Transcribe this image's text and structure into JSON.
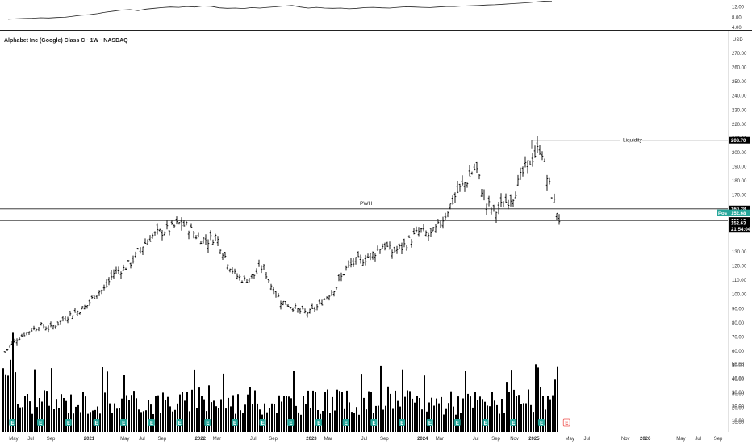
{
  "header": {
    "title": "Alphabet Inc (Google) Class C · 1W · NASDAQ",
    "currency": "USD"
  },
  "top_panel": {
    "ticks": [
      "12.00",
      "8.00",
      "4.00"
    ],
    "values": [
      7.2,
      7.4,
      7.5,
      7.6,
      7.8,
      7.7,
      7.9,
      8.0,
      8.4,
      8.8,
      9.0,
      9.4,
      10.0,
      10.4,
      10.8,
      11.0,
      10.6,
      11.2,
      11.5,
      11.8,
      12.0,
      11.9,
      12.2,
      12.0,
      12.4,
      12.3,
      11.7,
      11.5,
      11.6,
      11.4,
      11.8,
      11.6,
      11.9,
      12.1,
      12.4,
      12.6,
      12.0,
      11.6,
      11.9,
      11.6,
      11.5,
      11.6,
      11.3,
      11.5,
      11.8,
      11.9,
      11.7,
      11.6,
      11.9,
      12.1,
      12.0,
      11.9,
      11.8,
      12.0,
      12.2,
      12.2,
      12.4,
      12.5,
      12.6,
      12.8,
      12.9,
      13.1,
      13.3,
      13.5,
      13.7,
      14.0,
      14.3,
      14.2
    ]
  },
  "price_axis": {
    "ticks": [
      "270.00",
      "260.00",
      "250.00",
      "240.00",
      "230.00",
      "220.00",
      "210.00",
      "200.00",
      "190.00",
      "180.00",
      "170.00",
      "130.00",
      "120.00",
      "110.00",
      "100.00",
      "90.00",
      "80.00",
      "70.00",
      "60.00",
      "50.00",
      "40.00",
      "30.00",
      "20.00",
      "10.00"
    ]
  },
  "levels": [
    {
      "name": "Liquidity",
      "price": 208.7,
      "label": "208.70"
    },
    {
      "name": "PWH",
      "price": 160.28,
      "label": "160.28"
    },
    {
      "name": "",
      "price": 152.1,
      "label": "152.10"
    }
  ],
  "badges": {
    "pos_label": "Pos",
    "pos_value": "152.68",
    "last_price": "152.63",
    "countdown": "21:54:04"
  },
  "time_axis": {
    "ticks": [
      {
        "label": "May",
        "bold": false
      },
      {
        "label": "Jul",
        "bold": false
      },
      {
        "label": "Sep",
        "bold": false
      },
      {
        "label": "2021",
        "bold": true
      },
      {
        "label": "May",
        "bold": false
      },
      {
        "label": "Jul",
        "bold": false
      },
      {
        "label": "Sep",
        "bold": false
      },
      {
        "label": "2022",
        "bold": true
      },
      {
        "label": "Mar",
        "bold": false
      },
      {
        "label": "Jul",
        "bold": false
      },
      {
        "label": "Sep",
        "bold": false
      },
      {
        "label": "2023",
        "bold": true
      },
      {
        "label": "Mar",
        "bold": false
      },
      {
        "label": "Jul",
        "bold": false
      },
      {
        "label": "Sep",
        "bold": false
      },
      {
        "label": "2024",
        "bold": true
      },
      {
        "label": "Mar",
        "bold": false
      },
      {
        "label": "Jul",
        "bold": false
      },
      {
        "label": "Sep",
        "bold": false
      },
      {
        "label": "Nov",
        "bold": false
      },
      {
        "label": "2025",
        "bold": true
      },
      {
        "label": "May",
        "bold": false
      },
      {
        "label": "Jul",
        "bold": false
      },
      {
        "label": "Nov",
        "bold": false
      },
      {
        "label": "2026",
        "bold": true
      },
      {
        "label": "May",
        "bold": false
      },
      {
        "label": "Jul",
        "bold": false
      },
      {
        "label": "Sep",
        "bold": false
      }
    ]
  },
  "earnings_badge_text": "E",
  "colors": {
    "bars": "#000000",
    "earnings": "#26a69a",
    "earnings_outline": "#ef5350",
    "pos_badge": "#26a69a",
    "level_badge": "#000000"
  },
  "chart_data": {
    "type": "bar",
    "title": "Alphabet Inc (Google) Class C · 1W · NASDAQ",
    "xlabel": "",
    "ylabel": "",
    "ylim": [
      0,
      275
    ],
    "grid": false,
    "x_range": [
      "2020-04",
      "2026-10"
    ],
    "close_points": [
      {
        "date": "2020-04-01",
        "close": 58
      },
      {
        "date": "2020-05-01",
        "close": 66
      },
      {
        "date": "2020-06-01",
        "close": 71
      },
      {
        "date": "2020-07-01",
        "close": 75
      },
      {
        "date": "2020-08-01",
        "close": 78
      },
      {
        "date": "2020-09-01",
        "close": 76
      },
      {
        "date": "2020-10-01",
        "close": 80
      },
      {
        "date": "2020-11-01",
        "close": 85
      },
      {
        "date": "2020-12-01",
        "close": 88
      },
      {
        "date": "2021-01-01",
        "close": 92
      },
      {
        "date": "2021-02-01",
        "close": 101
      },
      {
        "date": "2021-03-01",
        "close": 104
      },
      {
        "date": "2021-04-01",
        "close": 116
      },
      {
        "date": "2021-05-01",
        "close": 118
      },
      {
        "date": "2021-06-01",
        "close": 124
      },
      {
        "date": "2021-07-01",
        "close": 134
      },
      {
        "date": "2021-08-01",
        "close": 141
      },
      {
        "date": "2021-09-01",
        "close": 144
      },
      {
        "date": "2021-10-01",
        "close": 146
      },
      {
        "date": "2021-11-01",
        "close": 150
      },
      {
        "date": "2021-12-01",
        "close": 147
      },
      {
        "date": "2022-01-01",
        "close": 140
      },
      {
        "date": "2022-02-01",
        "close": 138
      },
      {
        "date": "2022-03-01",
        "close": 141
      },
      {
        "date": "2022-04-01",
        "close": 126
      },
      {
        "date": "2022-05-01",
        "close": 114
      },
      {
        "date": "2022-06-01",
        "close": 110
      },
      {
        "date": "2022-07-01",
        "close": 113
      },
      {
        "date": "2022-08-01",
        "close": 120
      },
      {
        "date": "2022-09-01",
        "close": 105
      },
      {
        "date": "2022-10-01",
        "close": 95
      },
      {
        "date": "2022-11-01",
        "close": 92
      },
      {
        "date": "2022-12-01",
        "close": 88
      },
      {
        "date": "2023-01-01",
        "close": 87
      },
      {
        "date": "2023-02-01",
        "close": 92
      },
      {
        "date": "2023-03-01",
        "close": 99
      },
      {
        "date": "2023-04-01",
        "close": 106
      },
      {
        "date": "2023-05-01",
        "close": 118
      },
      {
        "date": "2023-06-01",
        "close": 123
      },
      {
        "date": "2023-07-01",
        "close": 125
      },
      {
        "date": "2023-08-01",
        "close": 129
      },
      {
        "date": "2023-09-01",
        "close": 135
      },
      {
        "date": "2023-10-01",
        "close": 130
      },
      {
        "date": "2023-11-01",
        "close": 133
      },
      {
        "date": "2023-12-01",
        "close": 139
      },
      {
        "date": "2024-01-01",
        "close": 145
      },
      {
        "date": "2024-02-01",
        "close": 141
      },
      {
        "date": "2024-03-01",
        "close": 148
      },
      {
        "date": "2024-04-01",
        "close": 160
      },
      {
        "date": "2024-05-01",
        "close": 172
      },
      {
        "date": "2024-06-01",
        "close": 180
      },
      {
        "date": "2024-07-01",
        "close": 190
      },
      {
        "date": "2024-08-01",
        "close": 165
      },
      {
        "date": "2024-09-01",
        "close": 158
      },
      {
        "date": "2024-10-01",
        "close": 164
      },
      {
        "date": "2024-11-01",
        "close": 170
      },
      {
        "date": "2024-12-01",
        "close": 185
      },
      {
        "date": "2025-01-01",
        "close": 196
      },
      {
        "date": "2025-02-01",
        "close": 205
      },
      {
        "date": "2025-02-15",
        "close": 186
      },
      {
        "date": "2025-03-01",
        "close": 175
      },
      {
        "date": "2025-03-15",
        "close": 165
      },
      {
        "date": "2025-04-01",
        "close": 152.6
      }
    ],
    "volume_scale_ticks": [
      "50.00",
      "40.00",
      "30.00",
      "20.00",
      "10.00"
    ]
  }
}
